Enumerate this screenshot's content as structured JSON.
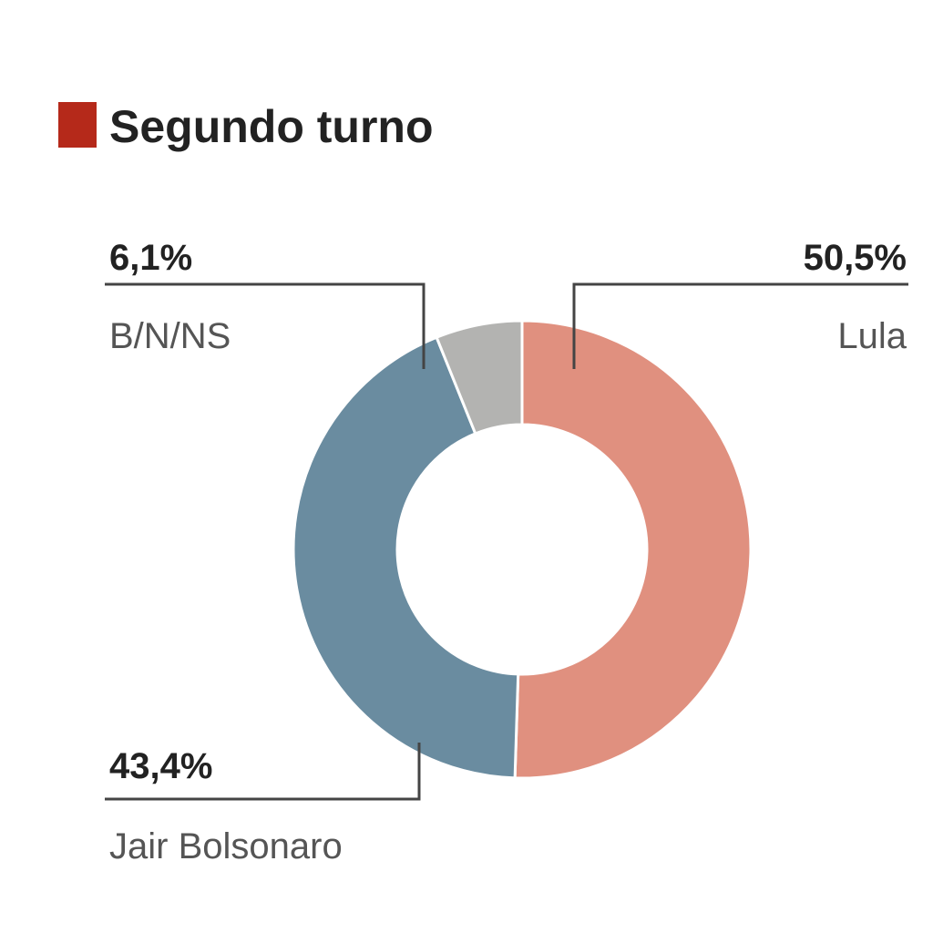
{
  "chart_data": {
    "type": "donut",
    "title": "Segundo turno",
    "categories": [
      "Lula",
      "Jair Bolsonaro",
      "B/N/NS"
    ],
    "values": [
      50.5,
      43.4,
      6.1
    ],
    "value_labels": [
      "50,5%",
      "43,4%",
      "6,1%"
    ],
    "colors": [
      "#e0907f",
      "#6a8ca0",
      "#b3b3b1"
    ]
  }
}
